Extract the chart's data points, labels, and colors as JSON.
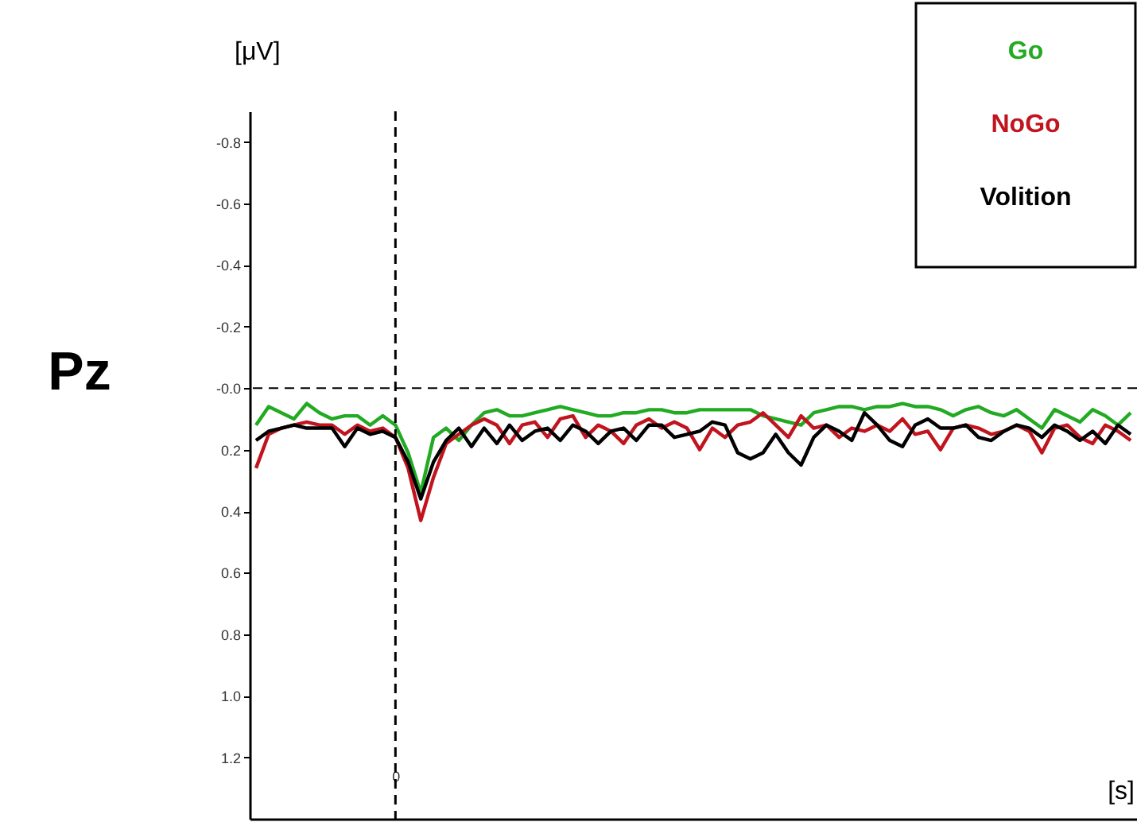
{
  "chart_data": {
    "type": "line",
    "categories": [
      null,
      null,
      null,
      null,
      null,
      null,
      null,
      null,
      null,
      null,
      null,
      "0",
      null,
      null,
      null,
      null,
      null,
      null,
      null,
      null,
      null,
      null,
      null,
      null,
      null,
      null,
      null,
      null,
      null,
      null,
      null,
      null,
      null,
      null,
      null,
      null,
      null,
      null,
      null,
      null,
      null,
      null,
      null,
      null,
      null,
      null,
      null,
      null,
      null,
      null,
      null,
      null,
      null,
      null,
      null,
      null,
      null,
      null,
      null,
      null,
      null,
      null,
      null,
      null,
      null,
      null,
      null,
      null,
      null,
      null
    ],
    "series": [
      {
        "name": "Go",
        "color": "#22aa22",
        "values": [
          0.12,
          0.06,
          0.08,
          0.1,
          0.05,
          0.08,
          0.1,
          0.09,
          0.09,
          0.12,
          0.09,
          0.12,
          0.21,
          0.34,
          0.16,
          0.13,
          0.17,
          0.12,
          0.08,
          0.07,
          0.09,
          0.09,
          0.08,
          0.07,
          0.06,
          0.07,
          0.08,
          0.09,
          0.09,
          0.08,
          0.08,
          0.07,
          0.07,
          0.08,
          0.08,
          0.07,
          0.07,
          0.07,
          0.07,
          0.07,
          0.09,
          0.1,
          0.11,
          0.12,
          0.08,
          0.07,
          0.06,
          0.06,
          0.07,
          0.06,
          0.06,
          0.05,
          0.06,
          0.06,
          0.07,
          0.09,
          0.07,
          0.06,
          0.08,
          0.09,
          0.07,
          0.1,
          0.13,
          0.07,
          0.09,
          0.11,
          0.07,
          0.09,
          0.12,
          0.08
        ]
      },
      {
        "name": "NoGo",
        "color": "#c0141e",
        "values": [
          0.26,
          0.15,
          0.13,
          0.12,
          0.11,
          0.12,
          0.12,
          0.15,
          0.12,
          0.14,
          0.13,
          0.16,
          0.26,
          0.43,
          0.29,
          0.18,
          0.15,
          0.12,
          0.1,
          0.12,
          0.18,
          0.12,
          0.11,
          0.16,
          0.1,
          0.09,
          0.16,
          0.12,
          0.14,
          0.18,
          0.12,
          0.1,
          0.13,
          0.11,
          0.13,
          0.2,
          0.13,
          0.16,
          0.12,
          0.11,
          0.08,
          0.12,
          0.16,
          0.09,
          0.13,
          0.12,
          0.16,
          0.13,
          0.14,
          0.12,
          0.14,
          0.1,
          0.15,
          0.14,
          0.2,
          0.13,
          0.12,
          0.13,
          0.15,
          0.14,
          0.12,
          0.14,
          0.21,
          0.13,
          0.12,
          0.16,
          0.18,
          0.12,
          0.14,
          0.17
        ]
      },
      {
        "name": "Volition",
        "color": "#000000",
        "values": [
          0.17,
          0.14,
          0.13,
          0.12,
          0.13,
          0.13,
          0.13,
          0.19,
          0.13,
          0.15,
          0.14,
          0.16,
          0.24,
          0.36,
          0.24,
          0.17,
          0.13,
          0.19,
          0.13,
          0.18,
          0.12,
          0.17,
          0.14,
          0.13,
          0.17,
          0.12,
          0.14,
          0.18,
          0.14,
          0.13,
          0.17,
          0.12,
          0.12,
          0.16,
          0.15,
          0.14,
          0.11,
          0.12,
          0.21,
          0.23,
          0.21,
          0.15,
          0.21,
          0.25,
          0.16,
          0.12,
          0.14,
          0.17,
          0.08,
          0.12,
          0.17,
          0.19,
          0.12,
          0.1,
          0.13,
          0.13,
          0.12,
          0.16,
          0.17,
          0.14,
          0.12,
          0.13,
          0.16,
          0.12,
          0.14,
          0.17,
          0.14,
          0.18,
          0.12,
          0.15
        ]
      }
    ],
    "ylabel": "[μV]",
    "xlabel": "[s]",
    "ylim": [
      1.4,
      -0.9
    ],
    "yticks": [
      -0.8,
      -0.6,
      -0.4,
      -0.2,
      {
        "value": 0,
        "label": "-0.0"
      },
      0.2,
      0.4,
      0.6,
      0.8,
      {
        "value": 1,
        "label": "1.0"
      },
      1.2
    ],
    "ref_lines": [
      {
        "axis": "x",
        "value": "0",
        "line_style": "dashed"
      },
      {
        "axis": "y",
        "value": 0,
        "line_style": "dashed"
      }
    ],
    "annotations": [
      "Pz"
    ],
    "legend": "top right",
    "grid": false,
    "line_style": "solid",
    "marker": "none"
  }
}
